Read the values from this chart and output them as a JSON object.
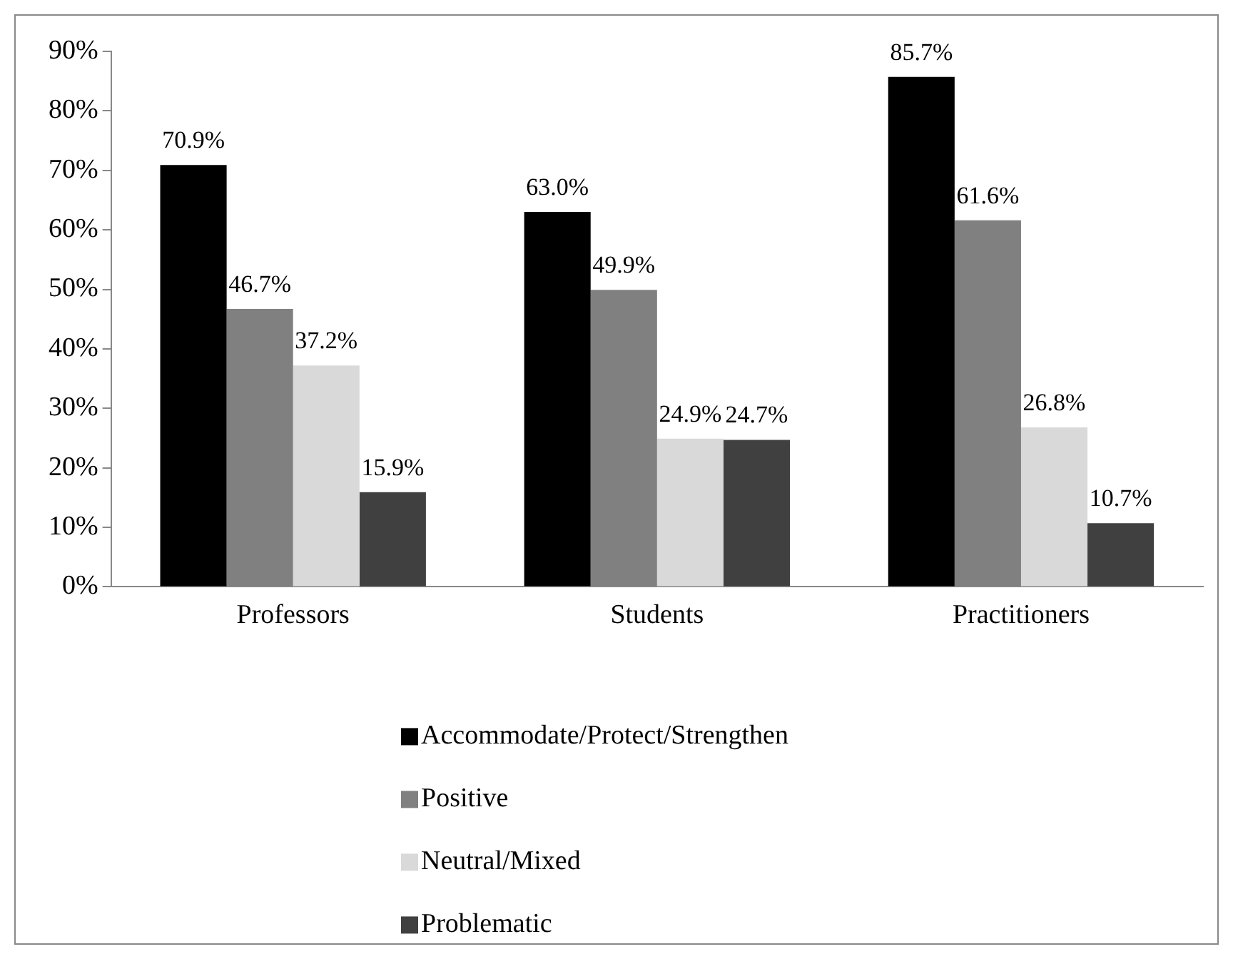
{
  "chart_data": {
    "type": "bar",
    "categories": [
      "Professors",
      "Students",
      "Practitioners"
    ],
    "series": [
      {
        "name": "Accommodate/Protect/Strengthen",
        "color": "#000000",
        "values": [
          70.9,
          63.0,
          85.7
        ],
        "value_labels": [
          "70.9%",
          "63.0%",
          "85.7%"
        ]
      },
      {
        "name": "Positive",
        "color": "#808080",
        "values": [
          46.7,
          49.9,
          61.6
        ],
        "value_labels": [
          "46.7%",
          "49.9%",
          "61.6%"
        ]
      },
      {
        "name": "Neutral/Mixed",
        "color": "#d9d9d9",
        "values": [
          37.2,
          24.9,
          26.8
        ],
        "value_labels": [
          "37.2%",
          "24.9%",
          "26.8%"
        ]
      },
      {
        "name": "Problematic",
        "color": "#404040",
        "values": [
          15.9,
          24.7,
          10.7
        ],
        "value_labels": [
          "15.9%",
          "24.7%",
          "10.7%"
        ]
      }
    ],
    "ylim": [
      0,
      90
    ],
    "yticks": [
      {
        "value": 0,
        "label": "0%"
      },
      {
        "value": 10,
        "label": "10%"
      },
      {
        "value": 20,
        "label": "20%"
      },
      {
        "value": 30,
        "label": "30%"
      },
      {
        "value": 40,
        "label": "40%"
      },
      {
        "value": 50,
        "label": "50%"
      },
      {
        "value": 60,
        "label": "60%"
      },
      {
        "value": 70,
        "label": "70%"
      },
      {
        "value": 80,
        "label": "80%"
      },
      {
        "value": 90,
        "label": "90%"
      }
    ],
    "grid": false,
    "legend": "bottom"
  }
}
